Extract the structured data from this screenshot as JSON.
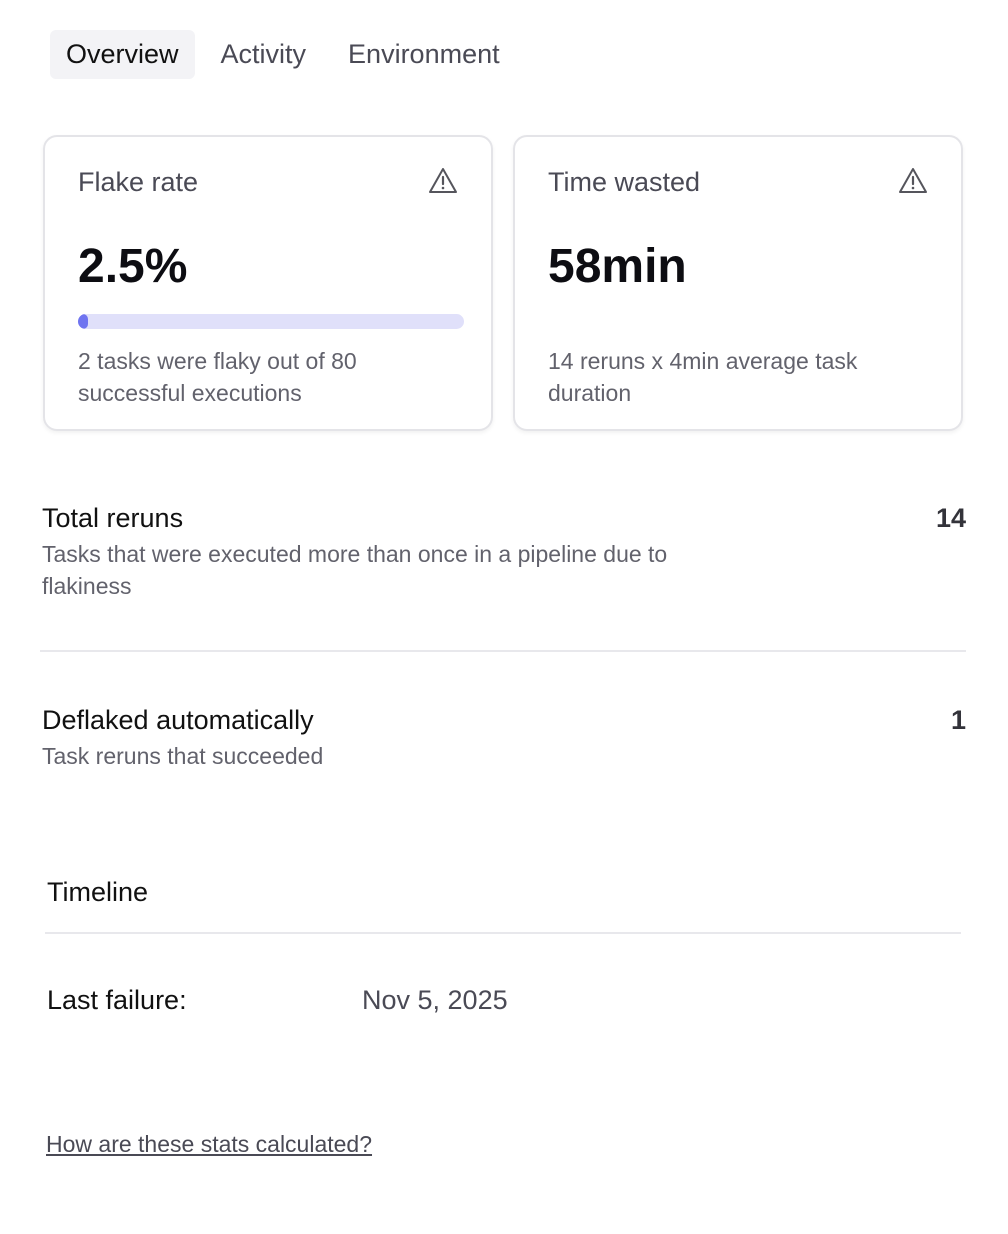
{
  "tabs": [
    {
      "label": "Overview",
      "active": true
    },
    {
      "label": "Activity",
      "active": false
    },
    {
      "label": "Environment",
      "active": false
    }
  ],
  "cards": [
    {
      "title": "Flake rate",
      "icon": "warning-icon",
      "value": "2.5%",
      "progress_percent": 2.5,
      "description": "2 tasks were flaky out of 80 successful executions"
    },
    {
      "title": "Time wasted",
      "icon": "warning-icon",
      "value": "58min",
      "description": "14 reruns x 4min average task duration"
    }
  ],
  "stats": [
    {
      "label": "Total reruns",
      "description": "Tasks that were executed more than once in a pipeline due to flakiness",
      "value": "14"
    },
    {
      "label": "Deflaked automatically",
      "description": "Task reruns that succeeded",
      "value": "1"
    }
  ],
  "timeline": {
    "title": "Timeline",
    "last_failure_label": "Last failure:",
    "last_failure_value": "Nov 5, 2025"
  },
  "help_link": "How are these stats calculated?",
  "colors": {
    "progress_fill": "#6f74f0",
    "progress_track": "#e0e0fa"
  }
}
